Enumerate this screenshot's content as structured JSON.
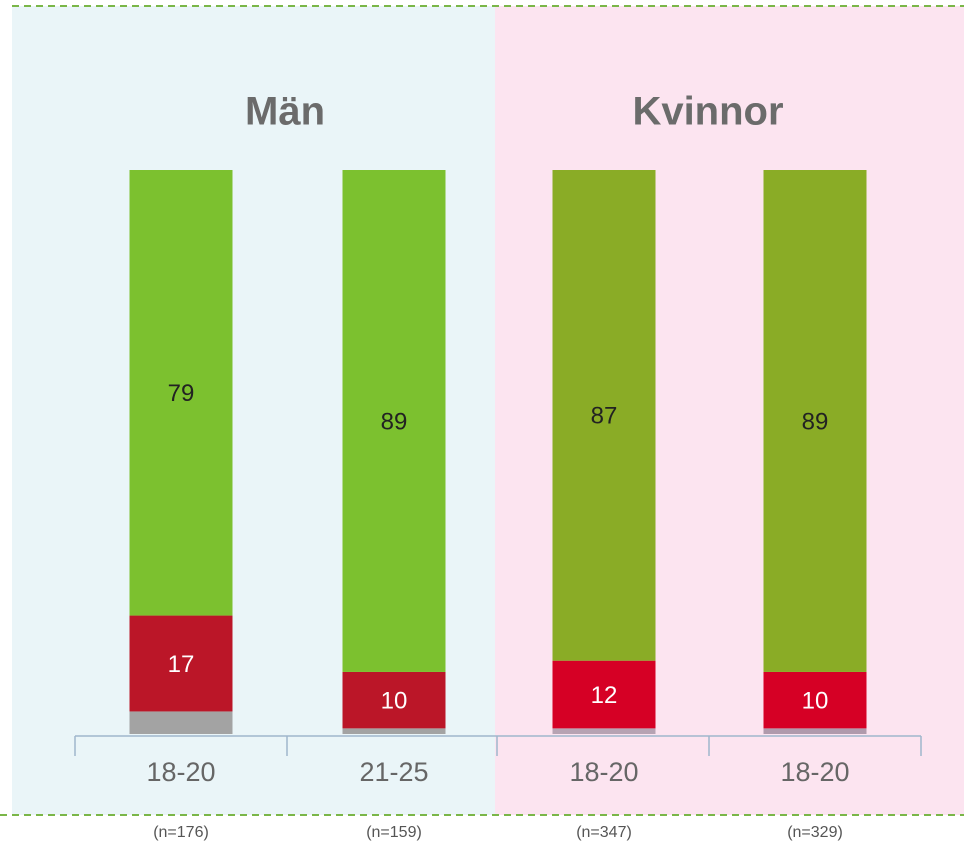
{
  "chart_data": {
    "type": "stacked_bar",
    "group_titles": [
      "Män",
      "Kvinnor"
    ],
    "categories": [
      "18-20",
      "21-25",
      "18-20",
      "18-20"
    ],
    "sample_sizes": [
      "(n=176)",
      "(n=159)",
      "(n=347)",
      "(n=329)"
    ],
    "ylim": [
      0,
      100
    ],
    "series": [
      {
        "colors": [
          "#a3a3a3",
          "#a3a3a3",
          "#b7a3b3",
          "#b09aac"
        ],
        "values": [
          4,
          1,
          1,
          1
        ]
      },
      {
        "colors": [
          "#bb1628",
          "#bb1628",
          "#d60025",
          "#d60025"
        ],
        "values": [
          17,
          10,
          12,
          10
        ],
        "labeled": true
      },
      {
        "colors": [
          "#7cc12f",
          "#7cc12f",
          "#8aac26",
          "#8aac26"
        ],
        "values": [
          79,
          89,
          87,
          89
        ],
        "labeled": true
      }
    ]
  }
}
